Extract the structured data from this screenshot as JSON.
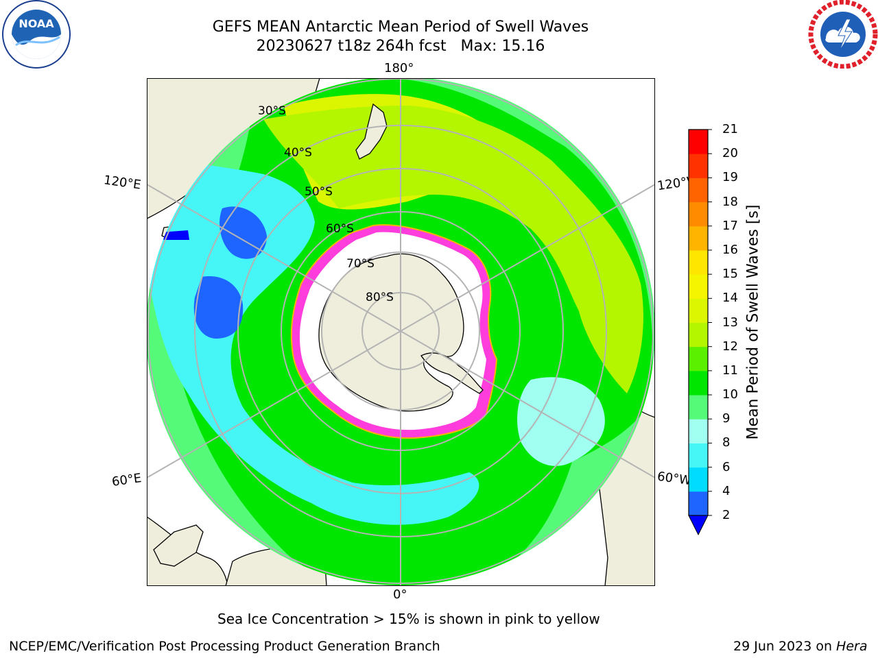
{
  "header": {
    "title_line1": "GEFS MEAN Antarctic Mean Period of Swell Waves",
    "title_line2": "20230627 t18z 264h fcst   Max: 15.16"
  },
  "logos": {
    "left": {
      "icon": "noaa-logo",
      "text": "NOAA",
      "ring_text": "NATIONAL OCEANIC AND ATMOSPHERIC ADMINISTRATION • U.S. DEPARTMENT OF COMMERCE"
    },
    "right": {
      "icon": "nws-logo",
      "ring_text": "NATIONAL WEATHER SERVICE"
    }
  },
  "map": {
    "projection": "south-polar-stereographic",
    "lon_labels": {
      "top": "180°",
      "bottom": "0°",
      "left_upper": "120°E",
      "left_lower": "60°E",
      "right_upper": "120°W",
      "right_lower": "60°W"
    },
    "lat_labels": [
      "30°S",
      "40°S",
      "50°S",
      "60°S",
      "70°S",
      "80°S"
    ],
    "colors": {
      "land": "#efeedc",
      "ice_edge": "#ff3cdc",
      "ice_interior": "#ffffff",
      "grid": "#b4b4b4"
    }
  },
  "colorbar": {
    "label": "Mean Period of Swell Waves [s]",
    "ticks": [
      "2",
      "4",
      "6",
      "8",
      "9",
      "10",
      "11",
      "12",
      "13",
      "14",
      "15",
      "16",
      "17",
      "18",
      "19",
      "20",
      "21"
    ],
    "colors": [
      "#1e64ff",
      "#00dcff",
      "#46f5f5",
      "#a0fff0",
      "#55fa78",
      "#00e600",
      "#5af000",
      "#b4f500",
      "#dcf500",
      "#f5f500",
      "#ffe600",
      "#ffb400",
      "#ff8c00",
      "#ff6400",
      "#ff3200",
      "#ff0000"
    ],
    "under_color": "#0000ff"
  },
  "footer": {
    "note": "Sea Ice Concentration > 15% is shown in pink to yellow",
    "credit_left": "NCEP/EMC/Verification Post Processing Product Generation Branch",
    "credit_right_date": "29 Jun 2023 on ",
    "credit_right_host": "Hera"
  }
}
